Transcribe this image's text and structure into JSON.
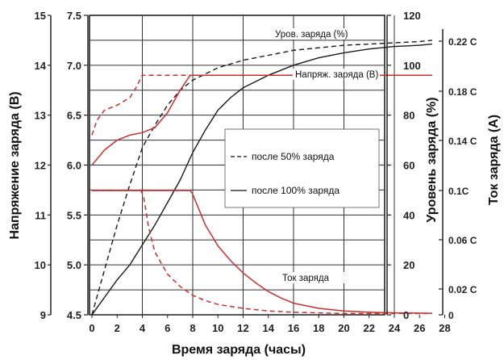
{
  "chart_data": {
    "type": "line",
    "xlabel": "Время заряда (часы)",
    "x_ticks": [
      "0",
      "2",
      "4",
      "6",
      "8",
      "10",
      "12",
      "14",
      "16",
      "18",
      "20",
      "22",
      "24",
      "26",
      "28"
    ],
    "xlim": [
      0,
      28
    ],
    "axes": {
      "voltage_12v": {
        "label": "Напряжение заряда (В)",
        "ticks": [
          "9",
          "10",
          "11",
          "12",
          "13",
          "14",
          "15"
        ],
        "range": [
          9,
          15
        ]
      },
      "voltage_6v": {
        "ticks": [
          "4.5",
          "5.0",
          "5.5",
          "6.0",
          "6.5",
          "7.0",
          "7.5"
        ],
        "range": [
          4.5,
          7.5
        ]
      },
      "charge_level": {
        "label": "Уровень заряда (%)",
        "ticks": [
          "0",
          "20",
          "40",
          "60",
          "80",
          "100",
          "120"
        ],
        "range": [
          0,
          120
        ]
      },
      "current": {
        "label": "Ток заряда (A)",
        "ticks": [
          "0",
          "0.02 C",
          "0.06 C",
          "0.1C",
          "0.14 C",
          "0.18 C",
          "0.22 C"
        ],
        "tick_values": [
          0,
          0.02,
          0.06,
          0.1,
          0.14,
          0.18,
          0.22
        ]
      }
    },
    "grid": true,
    "annotations": {
      "charge_level": "Уров. заряда (%)",
      "voltage": "Напряж. заряда (В)",
      "current": "Ток заряда"
    },
    "legend": {
      "position": "center-right",
      "entries": [
        {
          "label": "после 50% заряда",
          "style": "dashed"
        },
        {
          "label": "после 100% заряда",
          "style": "solid"
        }
      ]
    },
    "colors": {
      "voltage": "#c8302e",
      "current": "#c8302e",
      "charge_level": "#1a1a1a",
      "grid": "#333333"
    },
    "series": [
      {
        "group": "charge_level",
        "axis": "charge_level",
        "style": "dashed",
        "x": [
          0,
          1,
          2,
          3,
          4,
          5,
          6,
          7,
          8,
          10,
          12,
          14,
          16,
          18,
          20,
          22,
          24,
          26,
          27
        ],
        "y": [
          0,
          18,
          36,
          52,
          67,
          76,
          84,
          90,
          94,
          99,
          102,
          104,
          106,
          107,
          108,
          108.5,
          109,
          109.5,
          110
        ]
      },
      {
        "group": "charge_level",
        "axis": "charge_level",
        "style": "solid",
        "x": [
          0,
          1,
          2,
          3,
          4,
          5,
          6,
          7,
          8,
          9,
          10,
          11,
          12,
          14,
          16,
          18,
          20,
          22,
          24,
          26,
          27
        ],
        "y": [
          0,
          7,
          14,
          20,
          28,
          36,
          45,
          54,
          65,
          74,
          82,
          87,
          91,
          96,
          100,
          103,
          105,
          106.5,
          107.5,
          108,
          108.5
        ]
      },
      {
        "group": "voltage",
        "axis": "voltage_12v",
        "style": "dashed",
        "x": [
          0,
          0.4,
          1,
          2,
          3,
          3.5,
          4,
          27
        ],
        "y": [
          12.6,
          12.9,
          13.1,
          13.2,
          13.35,
          13.55,
          13.8,
          13.8
        ]
      },
      {
        "group": "voltage",
        "axis": "voltage_12v",
        "style": "solid",
        "x": [
          0,
          1,
          2,
          3,
          4,
          5,
          6,
          7,
          7.8,
          27
        ],
        "y": [
          12.0,
          12.3,
          12.5,
          12.6,
          12.65,
          12.75,
          13.05,
          13.5,
          13.8,
          13.8
        ]
      },
      {
        "group": "current",
        "axis": "current",
        "style": "dashed",
        "x": [
          0,
          3.9,
          4.1,
          4.5,
          5,
          6,
          7,
          8,
          9,
          10,
          12,
          14,
          16,
          18,
          20,
          22,
          24,
          27
        ],
        "y": [
          0.1,
          0.1,
          0.095,
          0.07,
          0.05,
          0.032,
          0.022,
          0.015,
          0.011,
          0.008,
          0.005,
          0.003,
          0.002,
          0.0015,
          0.001,
          0.001,
          0.001,
          0.001
        ]
      },
      {
        "group": "current",
        "axis": "current",
        "style": "solid",
        "x": [
          0,
          7.8,
          8,
          9,
          10,
          11,
          12,
          13,
          14,
          15,
          16,
          18,
          20,
          22,
          24,
          27
        ],
        "y": [
          0.1,
          0.1,
          0.097,
          0.072,
          0.055,
          0.043,
          0.033,
          0.025,
          0.018,
          0.013,
          0.009,
          0.005,
          0.003,
          0.002,
          0.0015,
          0.0012
        ]
      }
    ]
  }
}
